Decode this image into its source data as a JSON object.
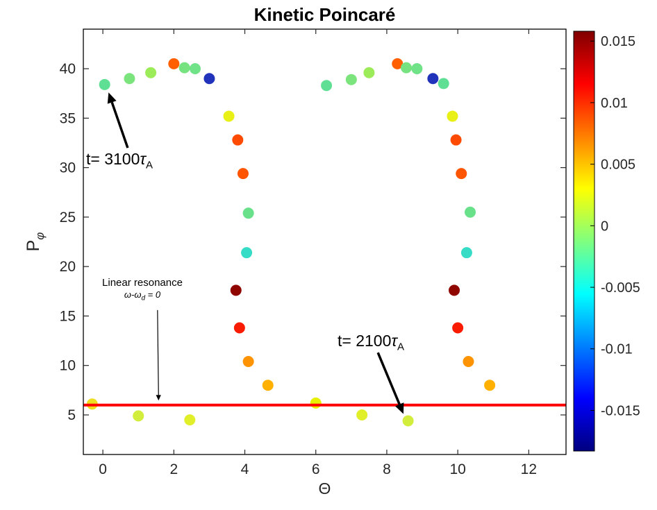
{
  "figure": {
    "title": "Kinetic Poincaré",
    "background": "#ffffff"
  },
  "chart_data": {
    "type": "scatter",
    "title": "Kinetic Poincaré",
    "xlabel": "Θ",
    "ylabel": "P_φ",
    "ylabel_main": "P",
    "ylabel_sub": "φ",
    "xlim": [
      -0.55,
      13.05
    ],
    "ylim": [
      1,
      44
    ],
    "xticks": [
      0,
      2,
      4,
      6,
      8,
      10,
      12
    ],
    "xtick_labels": [
      "0",
      "2",
      "4",
      "6",
      "8",
      "10",
      "12"
    ],
    "yticks": [
      5,
      10,
      15,
      20,
      25,
      30,
      35,
      40
    ],
    "ytick_labels": [
      "5",
      "10",
      "15",
      "20",
      "25",
      "30",
      "35",
      "40"
    ],
    "grid": false,
    "legend": "none",
    "marker_size": 8,
    "resonance_line": {
      "y": 6,
      "color": "#ff0000",
      "width": 4
    },
    "colorbar": {
      "position": "right",
      "colormap": "jet",
      "vmax": 0.0158,
      "vmin": -0.0183,
      "ticks": [
        0.015,
        0.01,
        0.005,
        0,
        -0.005,
        -0.01,
        -0.015
      ],
      "labels": [
        "0.015",
        "0.01",
        "0.005",
        "0",
        "-0.005",
        "-0.01",
        "-0.015"
      ],
      "gradient": [
        {
          "offset": "0%",
          "color": "#800000"
        },
        {
          "offset": "12.5%",
          "color": "#ff0000"
        },
        {
          "offset": "37.5%",
          "color": "#ffff00"
        },
        {
          "offset": "62.5%",
          "color": "#00ffff"
        },
        {
          "offset": "87.5%",
          "color": "#0000ff"
        },
        {
          "offset": "100%",
          "color": "#000080"
        }
      ]
    },
    "points": [
      {
        "x": -0.3,
        "y": 6.1,
        "c": 0.002,
        "color": "#eede20"
      },
      {
        "x": 0.05,
        "y": 38.4,
        "c": -0.003,
        "color": "#5fdf94"
      },
      {
        "x": 0.75,
        "y": 39.0,
        "c": -0.002,
        "color": "#7ce47c"
      },
      {
        "x": 1.0,
        "y": 4.9,
        "c": 0.0,
        "color": "#d3ed3c"
      },
      {
        "x": 1.35,
        "y": 39.6,
        "c": -0.001,
        "color": "#9ceb59"
      },
      {
        "x": 2.0,
        "y": 40.5,
        "c": 0.008,
        "color": "#ff5f00"
      },
      {
        "x": 2.3,
        "y": 40.1,
        "c": -0.002,
        "color": "#77e380"
      },
      {
        "x": 2.45,
        "y": 4.5,
        "c": 0.001,
        "color": "#e0ef2a"
      },
      {
        "x": 2.6,
        "y": 40.0,
        "c": -0.002,
        "color": "#70e287"
      },
      {
        "x": 3.0,
        "y": 39.0,
        "c": -0.016,
        "color": "#2233bb"
      },
      {
        "x": 3.55,
        "y": 35.2,
        "c": 0.001,
        "color": "#e8f016"
      },
      {
        "x": 3.8,
        "y": 32.8,
        "c": 0.009,
        "color": "#ff4a00"
      },
      {
        "x": 3.75,
        "y": 17.6,
        "c": 0.0148,
        "color": "#8f0500"
      },
      {
        "x": 3.85,
        "y": 13.8,
        "c": 0.011,
        "color": "#fb1c00"
      },
      {
        "x": 3.95,
        "y": 29.4,
        "c": 0.0085,
        "color": "#ff5400"
      },
      {
        "x": 4.1,
        "y": 25.4,
        "c": -0.0028,
        "color": "#69e18b"
      },
      {
        "x": 4.05,
        "y": 21.4,
        "c": -0.005,
        "color": "#36dcc6"
      },
      {
        "x": 4.1,
        "y": 10.4,
        "c": 0.006,
        "color": "#ff9400"
      },
      {
        "x": 4.65,
        "y": 8.0,
        "c": 0.0045,
        "color": "#ffb000"
      },
      {
        "x": 6.0,
        "y": 6.2,
        "c": 0.001,
        "color": "#e6f000"
      },
      {
        "x": 6.3,
        "y": 38.3,
        "c": -0.003,
        "color": "#5fdf94"
      },
      {
        "x": 7.0,
        "y": 38.9,
        "c": -0.002,
        "color": "#7ce47c"
      },
      {
        "x": 7.3,
        "y": 5.0,
        "c": 0.001,
        "color": "#e0ef2a"
      },
      {
        "x": 7.5,
        "y": 39.6,
        "c": -0.001,
        "color": "#9ceb59"
      },
      {
        "x": 8.3,
        "y": 40.5,
        "c": 0.008,
        "color": "#ff5f00"
      },
      {
        "x": 8.55,
        "y": 40.1,
        "c": -0.002,
        "color": "#77e380"
      },
      {
        "x": 8.6,
        "y": 4.4,
        "c": 0.0,
        "color": "#d3ed3c"
      },
      {
        "x": 8.85,
        "y": 40.0,
        "c": -0.002,
        "color": "#70e287"
      },
      {
        "x": 9.3,
        "y": 39.0,
        "c": -0.016,
        "color": "#2233bb"
      },
      {
        "x": 9.6,
        "y": 38.5,
        "c": -0.003,
        "color": "#5fdf94"
      },
      {
        "x": 9.85,
        "y": 35.2,
        "c": 0.001,
        "color": "#e8f016"
      },
      {
        "x": 9.95,
        "y": 32.8,
        "c": 0.009,
        "color": "#ff4a00"
      },
      {
        "x": 9.9,
        "y": 17.6,
        "c": 0.0148,
        "color": "#8f0500"
      },
      {
        "x": 10.0,
        "y": 13.8,
        "c": 0.011,
        "color": "#fb1c00"
      },
      {
        "x": 10.1,
        "y": 29.4,
        "c": 0.0085,
        "color": "#ff5400"
      },
      {
        "x": 10.35,
        "y": 25.5,
        "c": -0.0028,
        "color": "#69e18b"
      },
      {
        "x": 10.25,
        "y": 21.4,
        "c": -0.005,
        "color": "#36dcc6"
      },
      {
        "x": 10.3,
        "y": 10.4,
        "c": 0.006,
        "color": "#ff9400"
      },
      {
        "x": 10.9,
        "y": 8.0,
        "c": 0.0045,
        "color": "#ffb000"
      }
    ]
  },
  "annotations": {
    "t3100": {
      "text": "t= 3100",
      "tau": "τ",
      "sub": "A"
    },
    "t2100": {
      "text": "t= 2100",
      "tau": "τ",
      "sub": "A"
    },
    "resonance": {
      "line1": "Linear resonance",
      "omega": "ω-ω",
      "sub": "d",
      "eq": " = 0"
    },
    "arrows": [
      {
        "name": "t3100-arrow",
        "from": [
          0.7,
          32.0
        ],
        "to": [
          0.16,
          37.6
        ],
        "width": 3.5,
        "head": 15
      },
      {
        "name": "t2100-arrow",
        "from": [
          7.75,
          11.3
        ],
        "to": [
          8.47,
          5.1
        ],
        "width": 3.5,
        "head": 15
      },
      {
        "name": "resonance-arrow",
        "from": [
          1.54,
          15.6
        ],
        "to": [
          1.57,
          6.45
        ],
        "width": 1.2,
        "head": 8
      }
    ]
  }
}
